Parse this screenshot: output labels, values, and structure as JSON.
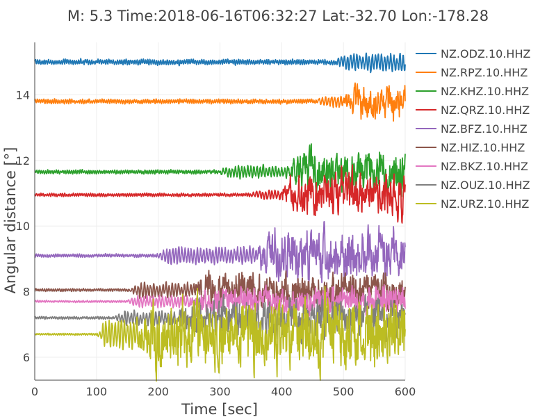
{
  "chart_data": {
    "type": "line",
    "title": "M: 5.3 Time:2018-06-16T06:32:27 Lat:-32.70 Lon:-178.28",
    "xlabel": "Time [sec]",
    "ylabel": "Angular distance [°]",
    "xlim": [
      0,
      600
    ],
    "ylim": [
      5.3,
      15.6
    ],
    "x_ticks": [
      0,
      100,
      200,
      300,
      400,
      500,
      600
    ],
    "y_ticks": [
      6,
      8,
      10,
      12,
      14
    ],
    "grid": true,
    "legend_placement": "right",
    "series": [
      {
        "name": "NZ.ODZ.10.HHZ",
        "color": "#1f77b4",
        "distance": 15.0,
        "noise_amplitude": 0.08,
        "p_arrival": 490,
        "p_amplitude": 0.15,
        "s_arrival": null,
        "s_amplitude": 0
      },
      {
        "name": "NZ.RPZ.10.HHZ",
        "color": "#ff7f0e",
        "distance": 13.8,
        "noise_amplitude": 0.07,
        "p_arrival": 460,
        "p_amplitude": 0.08,
        "s_arrival": 500,
        "s_amplitude": 0.35
      },
      {
        "name": "NZ.KHZ.10.HHZ",
        "color": "#2ca02c",
        "distance": 11.65,
        "noise_amplitude": 0.06,
        "p_arrival": 300,
        "p_amplitude": 0.1,
        "s_arrival": 410,
        "s_amplitude": 0.4
      },
      {
        "name": "NZ.QRZ.10.HHZ",
        "color": "#d62728",
        "distance": 10.95,
        "noise_amplitude": 0.05,
        "p_arrival": 350,
        "p_amplitude": 0.08,
        "s_arrival": 400,
        "s_amplitude": 0.45
      },
      {
        "name": "NZ.BFZ.10.HHZ",
        "color": "#9467bd",
        "distance": 9.1,
        "noise_amplitude": 0.05,
        "p_arrival": 200,
        "p_amplitude": 0.18,
        "s_arrival": 360,
        "s_amplitude": 0.5
      },
      {
        "name": "NZ.HIZ.10.HHZ",
        "color": "#8c564b",
        "distance": 8.05,
        "noise_amplitude": 0.04,
        "p_arrival": 155,
        "p_amplitude": 0.15,
        "s_arrival": 260,
        "s_amplitude": 0.35
      },
      {
        "name": "NZ.BKZ.10.HHZ",
        "color": "#e377c2",
        "distance": 7.7,
        "noise_amplitude": 0.03,
        "p_arrival": 150,
        "p_amplitude": 0.12,
        "s_arrival": 250,
        "s_amplitude": 0.25
      },
      {
        "name": "NZ.OUZ.10.HHZ",
        "color": "#7f7f7f",
        "distance": 7.2,
        "noise_amplitude": 0.04,
        "p_arrival": 130,
        "p_amplitude": 0.15,
        "s_arrival": 230,
        "s_amplitude": 0.35
      },
      {
        "name": "NZ.URZ.10.HHZ",
        "color": "#bcbd22",
        "distance": 6.7,
        "noise_amplitude": 0.03,
        "p_arrival": 100,
        "p_amplitude": 0.35,
        "s_arrival": 170,
        "s_amplitude": 0.6
      }
    ]
  }
}
